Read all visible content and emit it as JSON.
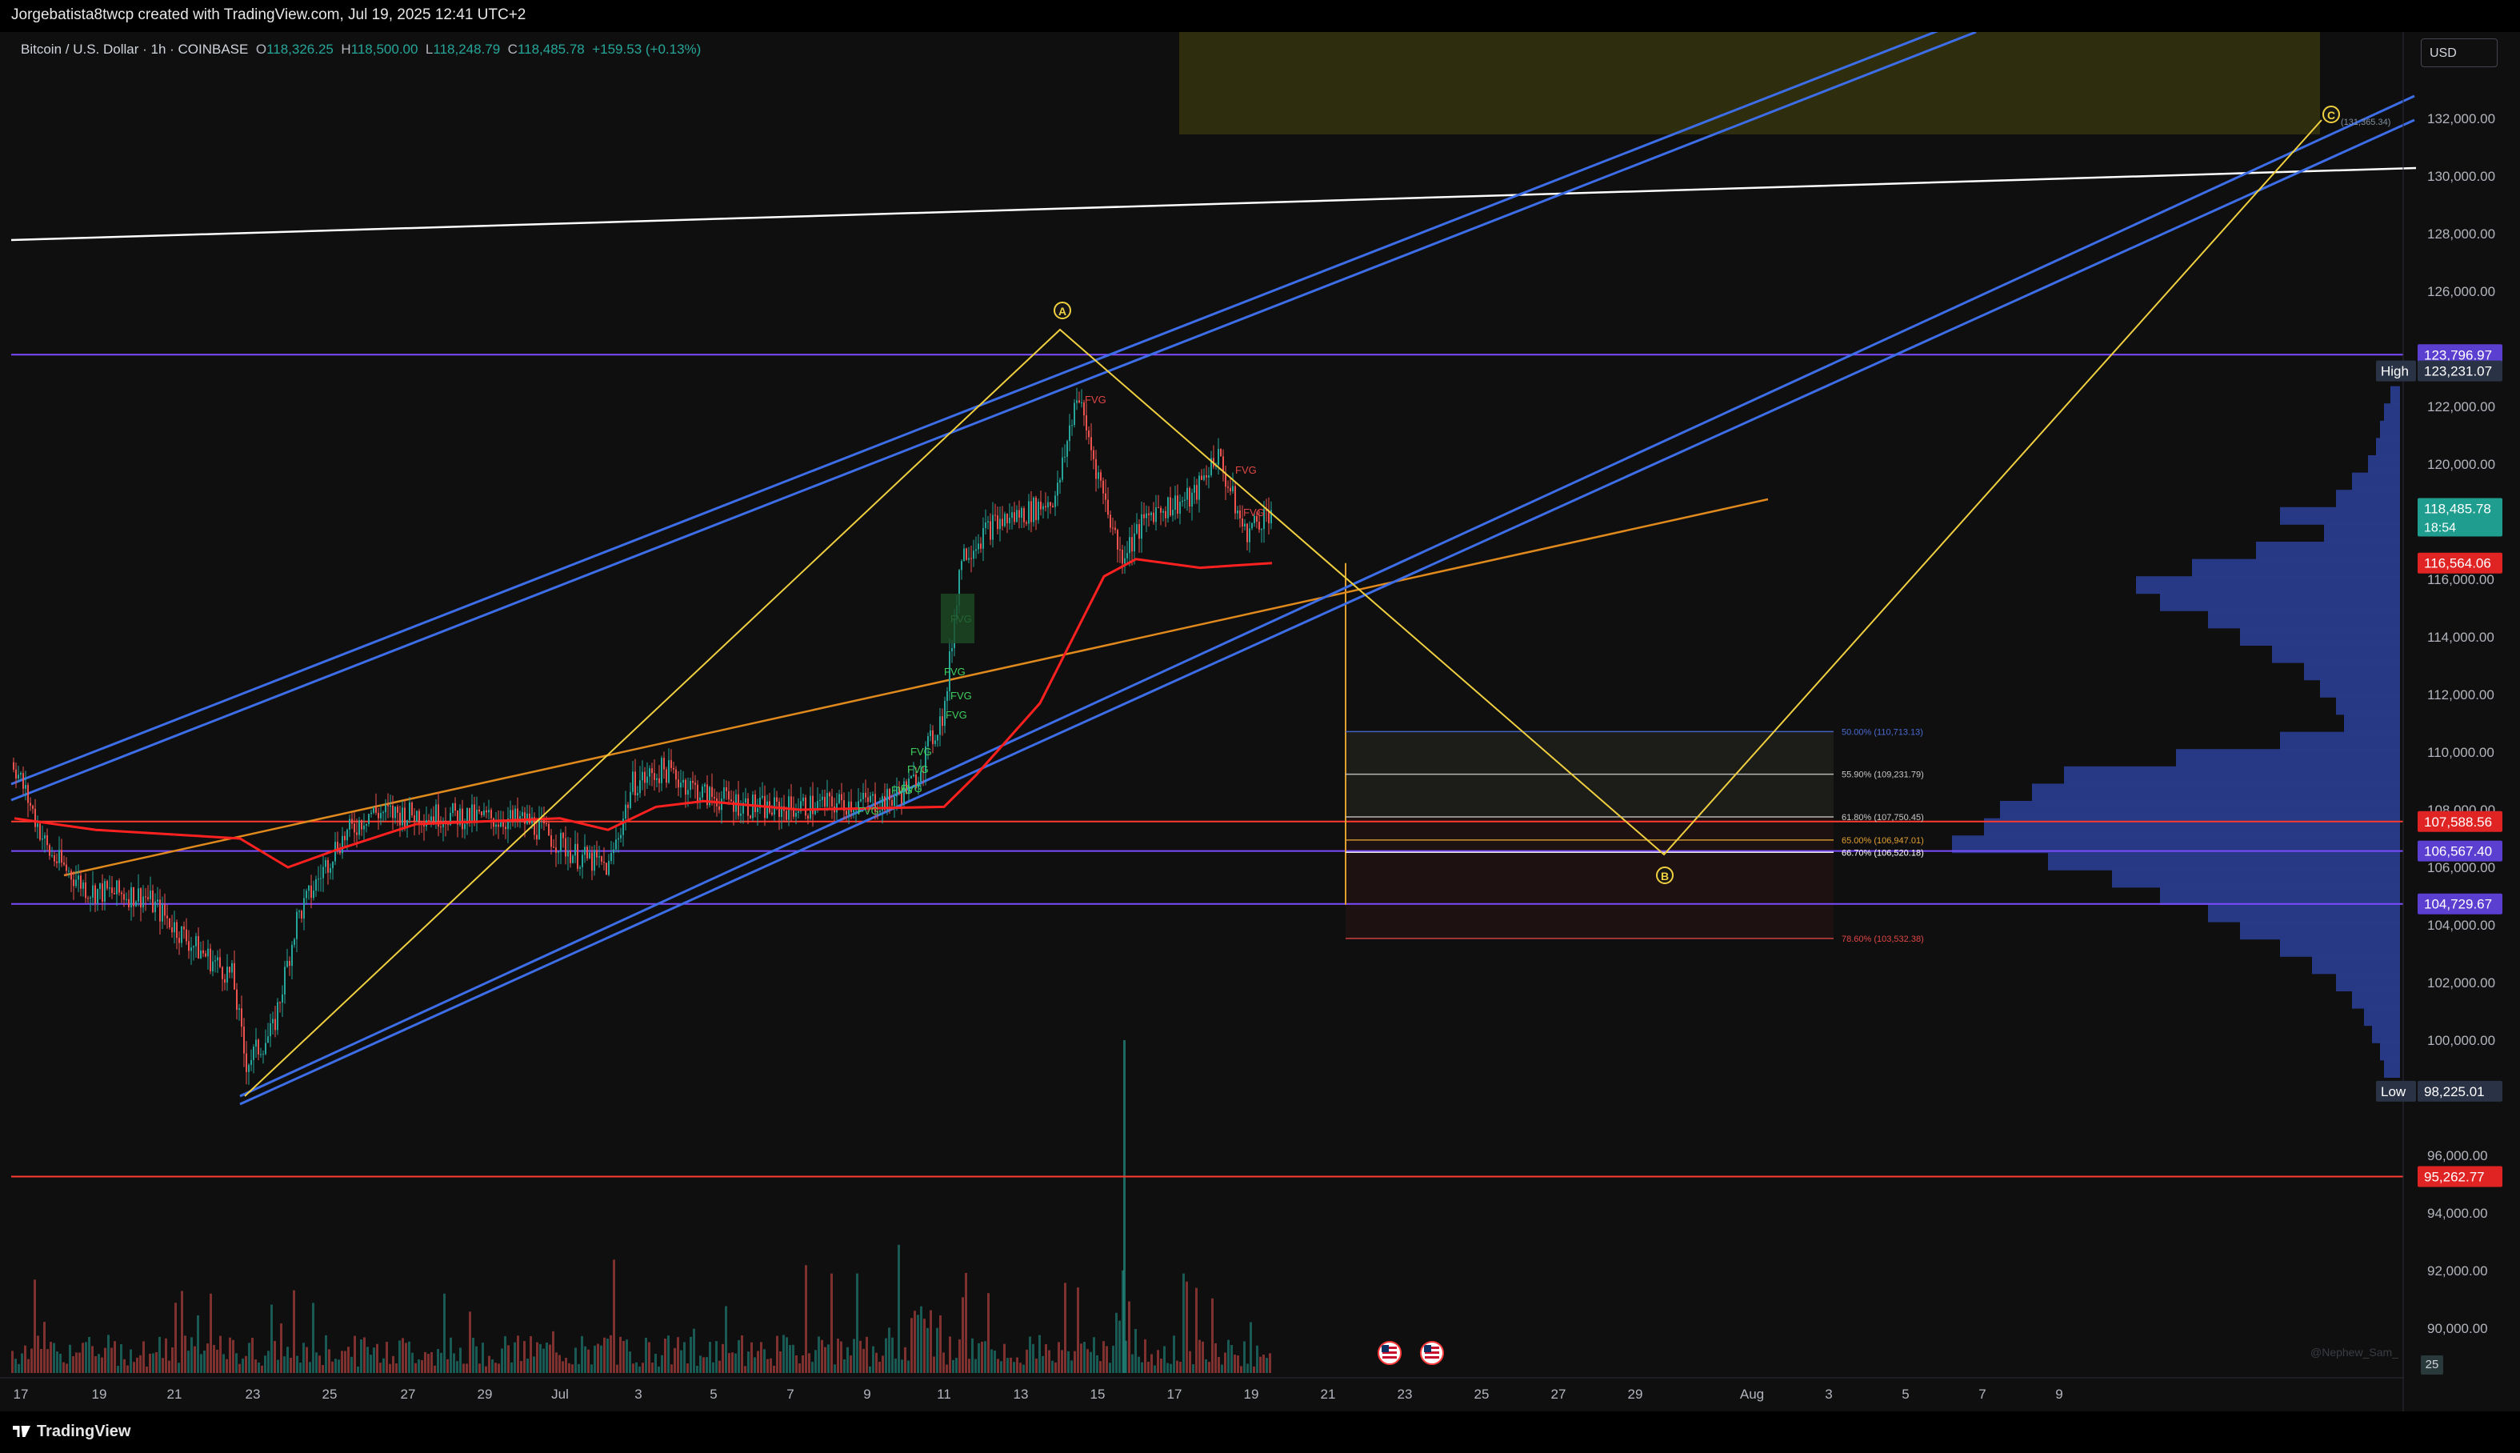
{
  "header": {
    "credit": "Jorgebatista8twcp created with TradingView.com, Jul 19, 2025 12:41 UTC+2"
  },
  "legend": {
    "symbol": "Bitcoin / U.S. Dollar · 1h · COINBASE",
    "open_label": "O",
    "open": "118,326.25",
    "high_label": "H",
    "high": "118,500.00",
    "low_label": "L",
    "low": "118,248.79",
    "close_label": "C",
    "close": "118,485.78",
    "change": "+159.53 (+0.13%)"
  },
  "currency_button": "USD",
  "timezone_button": "25",
  "watermark": "@Nephew_Sam_",
  "footer_logo": "TradingView",
  "colors": {
    "background": "#0f0f0f",
    "channel_blue": "#3d6ee8",
    "white_trend": "#ffffff",
    "purple_level": "#7b4bff",
    "red_level": "#ff3b30",
    "orange_trend": "#e08a1e",
    "wave_yellow": "#f0d040",
    "bull": "#26a69a",
    "bear": "#ef5350",
    "volume_profile": "#2c3f99",
    "fvg_green": "#3fcf5f",
    "fvg_red": "#e04646",
    "sma_red": "#ff2020"
  },
  "price_axis": {
    "ticks": [
      "132,000.00",
      "130,000.00",
      "128,000.00",
      "126,000.00",
      "122,000.00",
      "120,000.00",
      "116,000.00",
      "114,000.00",
      "112,000.00",
      "110,000.00",
      "108,000.00",
      "106,000.00",
      "104,000.00",
      "102,000.00",
      "100,000.00",
      "96,000.00",
      "94,000.00",
      "92,000.00",
      "90,000.00"
    ],
    "badges": [
      {
        "price": 123796.97,
        "text": "123,796.97",
        "color": "#5b3fd1"
      },
      {
        "price": 123231.07,
        "text": "123,231.07",
        "tag": "High",
        "color": "#2a3345"
      },
      {
        "price": 118485.78,
        "text": "118,485.78",
        "sub": "18:54",
        "color": "#1f9e8f"
      },
      {
        "price": 116564.06,
        "text": "116,564.06",
        "color": "#e02424"
      },
      {
        "price": 107588.56,
        "text": "107,588.56",
        "color": "#e02424"
      },
      {
        "price": 106567.4,
        "text": "106,567.40",
        "color": "#5b3fd1"
      },
      {
        "price": 104729.67,
        "text": "104,729.67",
        "color": "#5b3fd1"
      },
      {
        "price": 98225.01,
        "text": "98,225.01",
        "tag": "Low",
        "color": "#2a3345"
      },
      {
        "price": 95262.77,
        "text": "95,262.77",
        "color": "#e02424"
      }
    ]
  },
  "time_axis": {
    "ticks": [
      "17",
      "19",
      "21",
      "23",
      "25",
      "27",
      "29",
      "Jul",
      "3",
      "5",
      "7",
      "9",
      "11",
      "13",
      "15",
      "17",
      "19",
      "21",
      "23",
      "25",
      "27",
      "29",
      "Aug",
      "3",
      "5",
      "7",
      "9"
    ]
  },
  "fib_levels": [
    {
      "label": "50.00% (110,713.13)",
      "price": 110713.13,
      "color": "#4a6ad0"
    },
    {
      "label": "55.90% (109,231.79)",
      "price": 109231.79,
      "color": "#c8c8c8"
    },
    {
      "label": "61.80% (107,750.45)",
      "price": 107750.45,
      "color": "#c8c8c8"
    },
    {
      "label": "65.00% (106,947.01)",
      "price": 106947.01,
      "color": "#e0a030"
    },
    {
      "label": "66.70% (106,520.18)",
      "price": 106520.18,
      "color": "#ffffff"
    },
    {
      "label": "78.60% (103,532.38)",
      "price": 103532.38,
      "color": "#e04646"
    }
  ],
  "wave_labels": {
    "a": "A",
    "b": "B",
    "c": "C",
    "c_note": "(131,365.34)"
  },
  "fvg_tags": [
    {
      "text": "FVG",
      "color": "#e04646"
    },
    {
      "text": "FVG",
      "color": "#e04646"
    },
    {
      "text": "FVG",
      "color": "#e04646"
    },
    {
      "text": "FVG",
      "color": "#3fcf5f"
    },
    {
      "text": "FVG",
      "color": "#3fcf5f"
    },
    {
      "text": "FVG",
      "color": "#3fcf5f"
    },
    {
      "text": "FVG",
      "color": "#3fcf5f"
    },
    {
      "text": "FVG",
      "color": "#3fcf5f"
    },
    {
      "text": "FVG",
      "color": "#3fcf5f"
    },
    {
      "text": "FVG",
      "color": "#3fcf5f"
    },
    {
      "text": "FVG",
      "color": "#3fcf5f"
    },
    {
      "text": "FVG",
      "color": "#3fcf5f"
    }
  ]
}
